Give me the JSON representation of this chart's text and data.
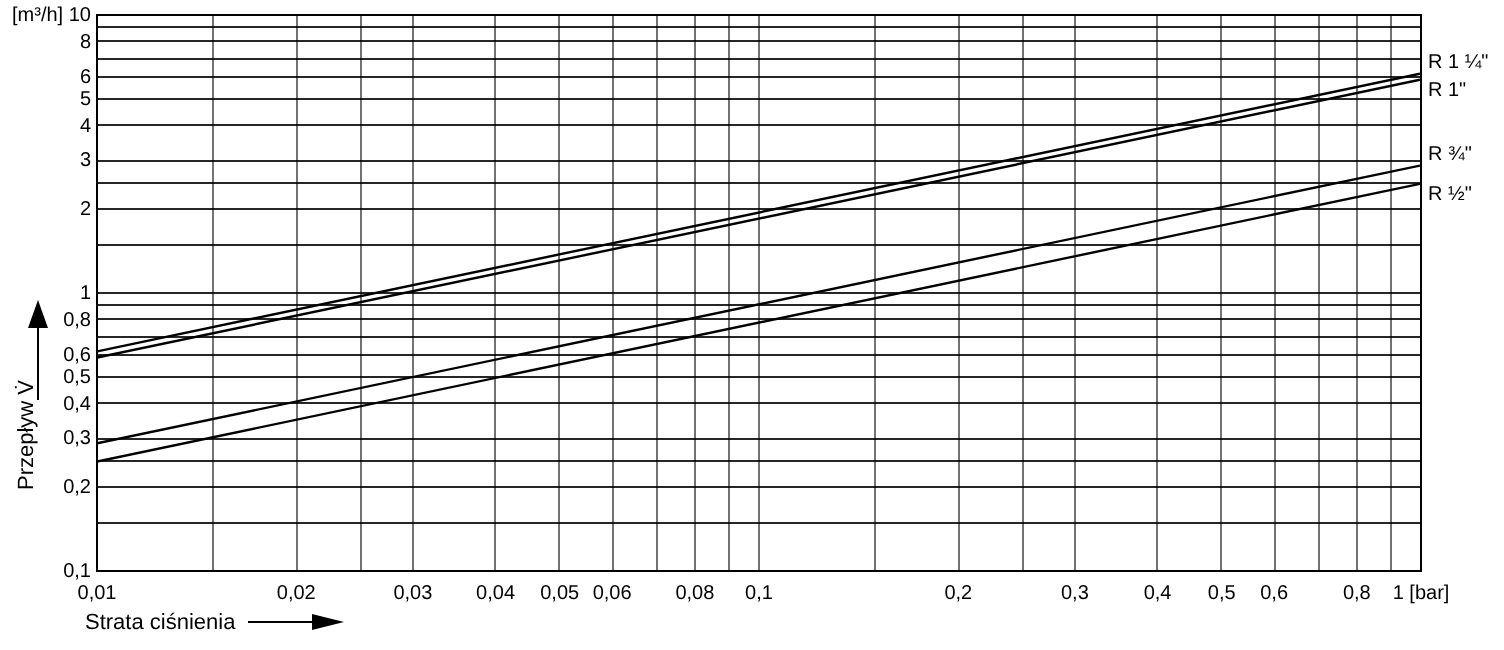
{
  "chart_data": {
    "type": "line",
    "xlabel": "Strata ciśnienia",
    "ylabel": "Przepływ V̇",
    "x": [
      0.01,
      1
    ],
    "series": [
      {
        "name": "R 1 ¼\"",
        "color": "#000000",
        "values": [
          0.61,
          6.1
        ]
      },
      {
        "name": "R 1\"",
        "color": "#000000",
        "values": [
          0.58,
          5.8
        ]
      },
      {
        "name": "R ¾\"",
        "color": "#000000",
        "values": [
          0.285,
          2.85
        ]
      },
      {
        "name": "R ½\"",
        "color": "#000000",
        "values": [
          0.245,
          2.45
        ]
      }
    ],
    "log": "xy",
    "xlim": [
      0.01,
      1
    ],
    "ylim": [
      0.1,
      10
    ],
    "xticks": [
      {
        "value": 0.01,
        "label": "0,01"
      },
      {
        "value": 0.015,
        "label": null
      },
      {
        "value": 0.02,
        "label": "0,02"
      },
      {
        "value": 0.025,
        "label": null
      },
      {
        "value": 0.03,
        "label": "0,03"
      },
      {
        "value": 0.04,
        "label": "0,04"
      },
      {
        "value": 0.05,
        "label": "0,05"
      },
      {
        "value": 0.06,
        "label": "0,06"
      },
      {
        "value": 0.07,
        "label": null
      },
      {
        "value": 0.08,
        "label": "0,08"
      },
      {
        "value": 0.09,
        "label": null
      },
      {
        "value": 0.1,
        "label": "0,1"
      },
      {
        "value": 0.15,
        "label": null
      },
      {
        "value": 0.2,
        "label": "0,2"
      },
      {
        "value": 0.25,
        "label": null
      },
      {
        "value": 0.3,
        "label": "0,3"
      },
      {
        "value": 0.4,
        "label": "0,4"
      },
      {
        "value": 0.5,
        "label": "0,5"
      },
      {
        "value": 0.6,
        "label": "0,6"
      },
      {
        "value": 0.7,
        "label": null
      },
      {
        "value": 0.8,
        "label": "0,8"
      },
      {
        "value": 0.9,
        "label": null
      },
      {
        "value": 1,
        "label": "1 [bar]"
      }
    ],
    "yticks": [
      {
        "value": 0.1,
        "label": "0,1"
      },
      {
        "value": 0.15,
        "label": null
      },
      {
        "value": 0.2,
        "label": "0,2"
      },
      {
        "value": 0.25,
        "label": null
      },
      {
        "value": 0.3,
        "label": "0,3"
      },
      {
        "value": 0.4,
        "label": "0,4"
      },
      {
        "value": 0.5,
        "label": "0,5"
      },
      {
        "value": 0.6,
        "label": "0,6"
      },
      {
        "value": 0.7,
        "label": null
      },
      {
        "value": 0.8,
        "label": "0,8"
      },
      {
        "value": 0.9,
        "label": null
      },
      1,
      {
        "value": 1.5,
        "label": null
      },
      2,
      {
        "value": 2.5,
        "label": null
      },
      3,
      4,
      5,
      6,
      {
        "value": 7,
        "label": null
      },
      8,
      {
        "value": 9,
        "label": null
      },
      {
        "value": 10,
        "label": "[m³/h] 10"
      }
    ],
    "grid": true
  }
}
